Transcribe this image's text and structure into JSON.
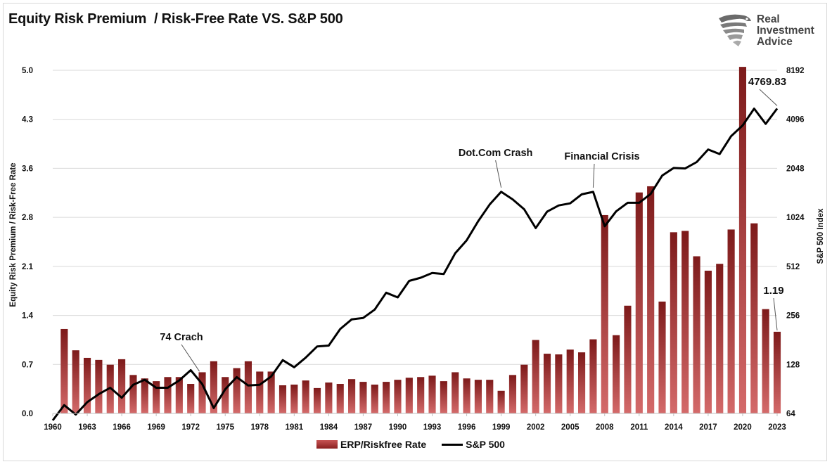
{
  "title": "Equity Risk Premium  / Risk-Free Rate VS. S&P 500",
  "logo": {
    "line1": "Real",
    "line2": "Investment",
    "line3": "Advice"
  },
  "colors": {
    "bar_top": "#d46a6a",
    "bar_bottom": "#7d1a1a",
    "line": "#000000",
    "grid": "#d9d9d9"
  },
  "chart_data": {
    "type": "bar",
    "x_labels": [
      "1960",
      "1963",
      "1966",
      "1969",
      "1972",
      "1975",
      "1978",
      "1981",
      "1984",
      "1987",
      "1990",
      "1993",
      "1996",
      "1999",
      "2002",
      "2005",
      "2008",
      "2011",
      "2014",
      "2017",
      "2020",
      "2023"
    ],
    "years": [
      1960,
      1961,
      1962,
      1963,
      1964,
      1965,
      1966,
      1967,
      1968,
      1969,
      1970,
      1971,
      1972,
      1973,
      1974,
      1975,
      1976,
      1977,
      1978,
      1979,
      1980,
      1981,
      1982,
      1983,
      1984,
      1985,
      1986,
      1987,
      1988,
      1989,
      1990,
      1991,
      1992,
      1993,
      1994,
      1995,
      1996,
      1997,
      1998,
      1999,
      2000,
      2001,
      2002,
      2003,
      2004,
      2005,
      2006,
      2007,
      2008,
      2009,
      2010,
      2011,
      2012,
      2013,
      2014,
      2015,
      2016,
      2017,
      2018,
      2019,
      2020,
      2021,
      2022,
      2023
    ],
    "series": [
      {
        "name": "ERP/Riskfree Rate",
        "type": "bar",
        "axis": "left",
        "values": [
          null,
          1.23,
          0.92,
          0.81,
          0.78,
          0.71,
          0.79,
          0.56,
          0.51,
          0.47,
          0.53,
          0.53,
          0.43,
          0.6,
          0.76,
          0.53,
          0.66,
          0.76,
          0.61,
          0.61,
          0.41,
          0.42,
          0.48,
          0.37,
          0.45,
          0.43,
          0.5,
          0.46,
          0.42,
          0.46,
          0.49,
          0.52,
          0.53,
          0.55,
          0.47,
          0.6,
          0.51,
          0.49,
          0.49,
          0.33,
          0.56,
          0.71,
          1.07,
          0.87,
          0.86,
          0.93,
          0.89,
          1.08,
          2.89,
          1.14,
          1.57,
          3.22,
          3.31,
          1.63,
          2.64,
          2.66,
          2.29,
          2.08,
          2.18,
          2.68,
          5.05,
          2.77,
          1.52,
          1.19
        ]
      },
      {
        "name": "S&P 500",
        "type": "line",
        "axis": "right",
        "values": [
          58,
          72,
          63,
          75,
          84,
          92,
          80,
          96,
          103,
          92,
          92,
          102,
          118,
          97,
          69,
          90,
          107,
          95,
          96,
          108,
          136,
          123,
          141,
          165,
          167,
          211,
          242,
          247,
          278,
          353,
          330,
          417,
          436,
          466,
          459,
          616,
          741,
          970,
          1229,
          1469,
          1320,
          1148,
          880,
          1112,
          1212,
          1248,
          1418,
          1468,
          903,
          1115,
          1258,
          1258,
          1426,
          1848,
          2059,
          2044,
          2239,
          2674,
          2507,
          3231,
          3756,
          4766,
          3840,
          4769.83
        ]
      }
    ],
    "left_axis": {
      "label": "Equity Risk Premium / Risk-Free Rate",
      "ticks": [
        "0.0",
        "0.7",
        "1.4",
        "2.1",
        "2.8",
        "3.6",
        "4.3",
        "5.0"
      ],
      "ylim": [
        0,
        5.0
      ]
    },
    "right_axis": {
      "label": "S&P 500 Index",
      "scale": "log2",
      "ticks": [
        "64",
        "128",
        "256",
        "512",
        "1024",
        "2048",
        "4096",
        "8192"
      ],
      "ylim": [
        64,
        8192
      ]
    },
    "annotations": [
      {
        "text": "74 Crach",
        "year": 1973
      },
      {
        "text": "Dot.Com Crash",
        "year": 1999
      },
      {
        "text": "Financial Crisis",
        "year": 2007
      },
      {
        "text": "4769.83",
        "year": 2023,
        "series": "S&P 500"
      },
      {
        "text": "1.19",
        "year": 2023,
        "series": "ERP/Riskfree Rate"
      }
    ],
    "legend": {
      "position": "bottom",
      "items": [
        "ERP/Riskfree Rate",
        "S&P 500"
      ]
    },
    "grid": true
  }
}
